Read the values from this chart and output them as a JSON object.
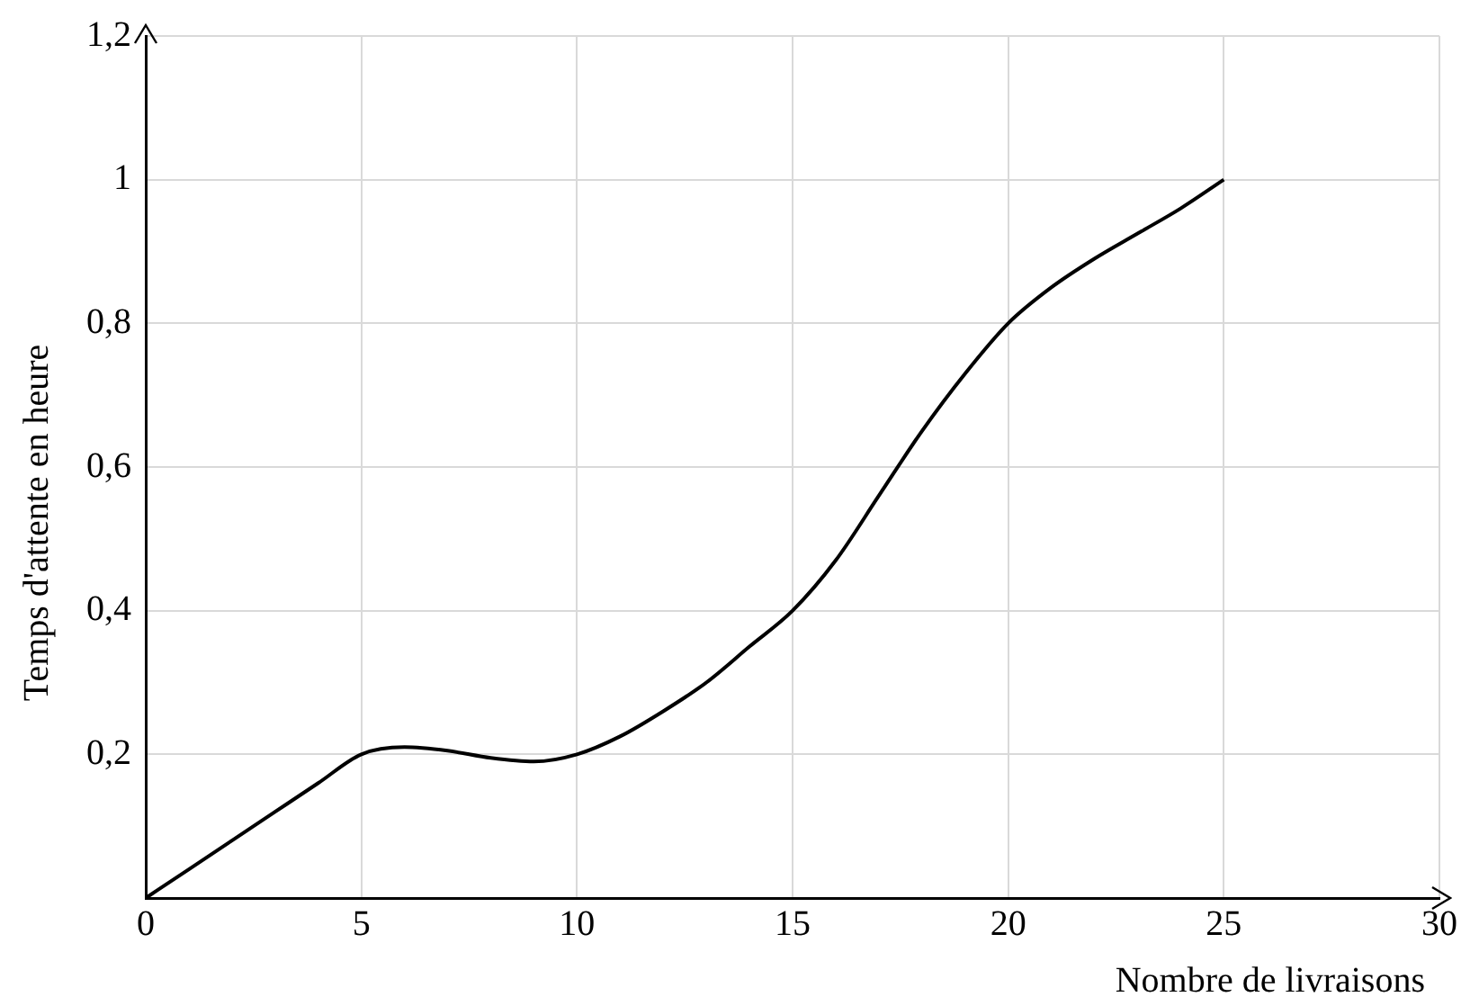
{
  "chart_data": {
    "type": "line",
    "xlabel": "Nombre de livraisons",
    "ylabel": "Temps d'attente en heure",
    "x": [
      0,
      1,
      2,
      3,
      4,
      5,
      6,
      7,
      8,
      9,
      10,
      11,
      12,
      13,
      14,
      15,
      16,
      17,
      18,
      19,
      20,
      21,
      22,
      23,
      24,
      25
    ],
    "series": [
      {
        "color": "#000000",
        "values": [
          0,
          0.04,
          0.08,
          0.12,
          0.16,
          0.2,
          0.21,
          0.205,
          0.195,
          0.19,
          0.2,
          0.225,
          0.26,
          0.3,
          0.35,
          0.4,
          0.47,
          0.56,
          0.65,
          0.73,
          0.8,
          0.85,
          0.89,
          0.925,
          0.96,
          1
        ]
      }
    ],
    "xlim": [
      0,
      30
    ],
    "xticks": [
      0,
      5,
      10,
      15,
      20,
      25,
      30
    ],
    "ylim": [
      0,
      1.2
    ],
    "yticks": [
      {
        "value": 0,
        "label": null
      },
      {
        "value": 0.2,
        "label": "0,2"
      },
      {
        "value": 0.4,
        "label": "0,4"
      },
      {
        "value": 0.6,
        "label": "0,6"
      },
      {
        "value": 0.8,
        "label": "0,8"
      },
      {
        "value": 1,
        "label": "1"
      },
      {
        "value": 1.2,
        "label": "1,2"
      }
    ],
    "grid": true,
    "legend": false,
    "marker": "none",
    "line_style": "solid"
  }
}
